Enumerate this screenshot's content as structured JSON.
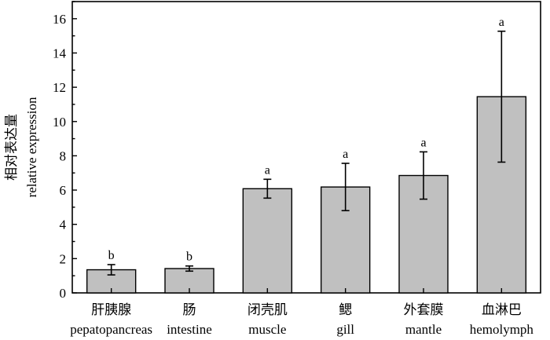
{
  "chart_data": {
    "type": "bar",
    "categories": [
      {
        "zh": "肝胰腺",
        "en": "pepatopancreas"
      },
      {
        "zh": "肠",
        "en": "intestine"
      },
      {
        "zh": "闭壳肌",
        "en": "muscle"
      },
      {
        "zh": "鳃",
        "en": "gill"
      },
      {
        "zh": "外套膜",
        "en": "mantle"
      },
      {
        "zh": "血淋巴",
        "en": "hemolymph"
      }
    ],
    "values": [
      1.35,
      1.42,
      6.08,
      6.18,
      6.85,
      11.45
    ],
    "errors": [
      0.3,
      0.15,
      0.55,
      1.38,
      1.38,
      3.82
    ],
    "significance": [
      "b",
      "b",
      "a",
      "a",
      "a",
      "a"
    ],
    "ylabel_zh": "相对表达量",
    "ylabel_en": "relative expression",
    "ylim": [
      0,
      17
    ],
    "yticks": [
      0,
      2,
      4,
      6,
      8,
      10,
      12,
      14,
      16
    ],
    "bar_color": "#c0c0c0",
    "grid": false
  }
}
